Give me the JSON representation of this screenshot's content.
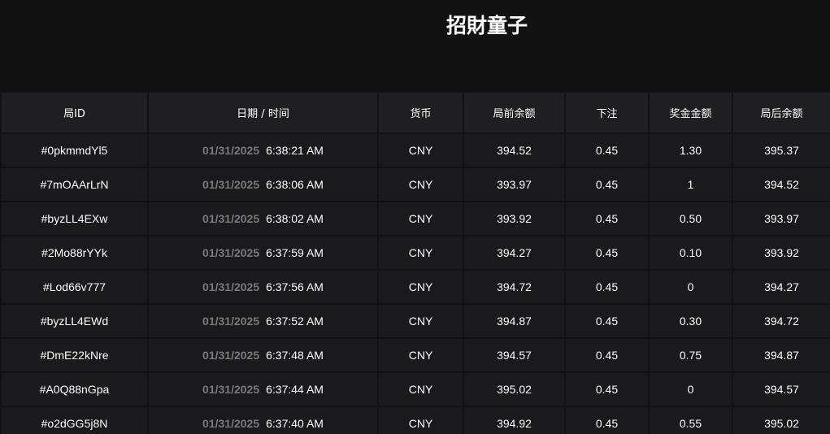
{
  "title": "招財童子",
  "headers": [
    "局ID",
    "日期 / 时间",
    "货币",
    "局前余额",
    "下注",
    "奖金金额",
    "局后余额"
  ],
  "rows": [
    {
      "id": "#0pkmmdYl5",
      "date": "01/31/2025",
      "time": "6:38:21 AM",
      "currency": "CNY",
      "before": "394.52",
      "bet": "0.45",
      "win": "1.30",
      "after": "395.37"
    },
    {
      "id": "#7mOAArLrN",
      "date": "01/31/2025",
      "time": "6:38:06 AM",
      "currency": "CNY",
      "before": "393.97",
      "bet": "0.45",
      "win": "1",
      "after": "394.52"
    },
    {
      "id": "#byzLL4EXw",
      "date": "01/31/2025",
      "time": "6:38:02 AM",
      "currency": "CNY",
      "before": "393.92",
      "bet": "0.45",
      "win": "0.50",
      "after": "393.97"
    },
    {
      "id": "#2Mo88rYYk",
      "date": "01/31/2025",
      "time": "6:37:59 AM",
      "currency": "CNY",
      "before": "394.27",
      "bet": "0.45",
      "win": "0.10",
      "after": "393.92"
    },
    {
      "id": "#Lod66v777",
      "date": "01/31/2025",
      "time": "6:37:56 AM",
      "currency": "CNY",
      "before": "394.72",
      "bet": "0.45",
      "win": "0",
      "after": "394.27"
    },
    {
      "id": "#byzLL4EWd",
      "date": "01/31/2025",
      "time": "6:37:52 AM",
      "currency": "CNY",
      "before": "394.87",
      "bet": "0.45",
      "win": "0.30",
      "after": "394.72"
    },
    {
      "id": "#DmE22kNre",
      "date": "01/31/2025",
      "time": "6:37:48 AM",
      "currency": "CNY",
      "before": "394.57",
      "bet": "0.45",
      "win": "0.75",
      "after": "394.87"
    },
    {
      "id": "#A0Q88nGpa",
      "date": "01/31/2025",
      "time": "6:37:44 AM",
      "currency": "CNY",
      "before": "395.02",
      "bet": "0.45",
      "win": "0",
      "after": "394.57"
    },
    {
      "id": "#o2dGG5j8N",
      "date": "01/31/2025",
      "time": "6:37:40 AM",
      "currency": "CNY",
      "before": "394.92",
      "bet": "0.45",
      "win": "0.55",
      "after": "395.02"
    }
  ]
}
